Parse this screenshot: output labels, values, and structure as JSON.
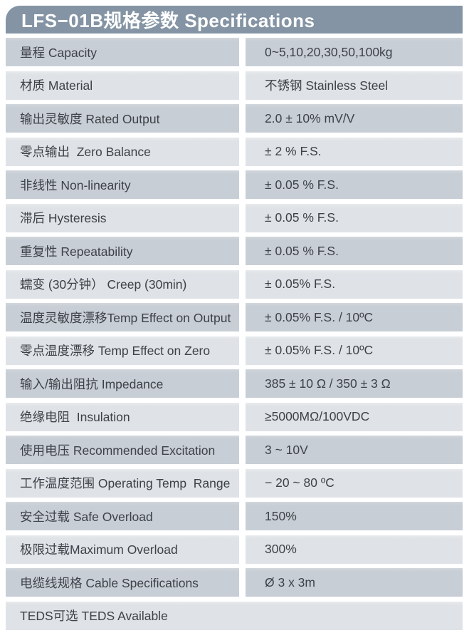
{
  "header": {
    "title": "LFS−01B规格参数 Specifications"
  },
  "colors": {
    "header_bg": "#8494a4",
    "row_dark": "#c8ced5",
    "row_light": "#dfe2e6",
    "text": "#3d4248",
    "header_text": "#ffffff"
  },
  "table": {
    "rows": [
      {
        "label": "量程 Capacity",
        "value": "0~5,10,20,30,50,100kg"
      },
      {
        "label": "材质 Material",
        "value": "不锈钢 Stainless Steel"
      },
      {
        "label": "输出灵敏度 Rated Output",
        "value": "2.0 ± 10% mV/V"
      },
      {
        "label": "零点输出  Zero Balance",
        "value": "± 2 % F.S."
      },
      {
        "label": "非线性 Non-linearity",
        "value": "± 0.05 % F.S."
      },
      {
        "label": "滞后 Hysteresis",
        "value": "± 0.05 % F.S."
      },
      {
        "label": "重复性 Repeatability",
        "value": "± 0.05 % F.S."
      },
      {
        "label": "蠕变 (30分钟） Creep (30min)",
        "value": "± 0.05% F.S."
      },
      {
        "label": "温度灵敏度漂移Temp Effect on Output",
        "value": "± 0.05% F.S. / 10ºC"
      },
      {
        "label": "零点温度漂移 Temp Effect on Zero",
        "value": "± 0.05% F.S. / 10ºC"
      },
      {
        "label": "输入/输出阻抗 Impedance",
        "value": "385 ± 10 Ω / 350 ± 3 Ω"
      },
      {
        "label": "绝缘电阻  Insulation",
        "value": "≥5000MΩ/100VDC"
      },
      {
        "label": "使用电压 Recommended Excitation",
        "value": "3 ~ 10V"
      },
      {
        "label": "工作温度范围 Operating Temp  Range",
        "value": "− 20 ~ 80 ºC"
      },
      {
        "label": "安全过载 Safe Overload",
        "value": "150%"
      },
      {
        "label": "极限过载Maximum Overload",
        "value": "300%"
      },
      {
        "label": "电缆线规格 Cable Specifications",
        "value": "Ø 3 x 3m"
      },
      {
        "label": "TEDS可选 TEDS Available",
        "value": "",
        "full_width": true
      }
    ]
  }
}
